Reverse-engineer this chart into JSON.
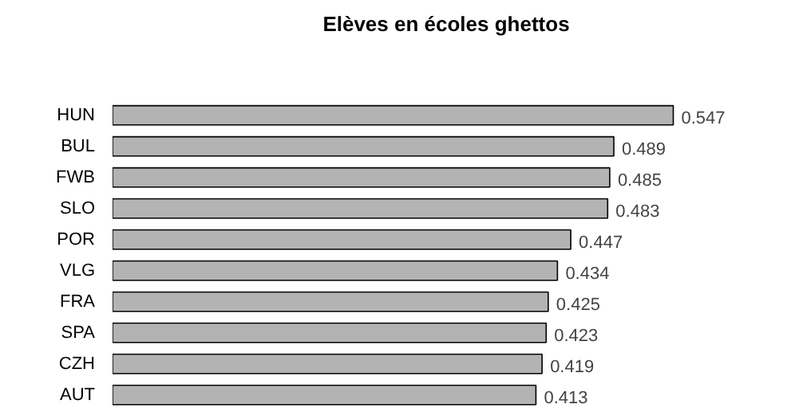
{
  "chart_data": {
    "type": "bar",
    "orientation": "horizontal",
    "title": "Elèves en écoles ghettos",
    "categories": [
      "HUN",
      "BUL",
      "FWB",
      "SLO",
      "POR",
      "VLG",
      "FRA",
      "SPA",
      "CZH",
      "AUT"
    ],
    "values": [
      0.547,
      0.489,
      0.485,
      0.483,
      0.447,
      0.434,
      0.425,
      0.423,
      0.419,
      0.413
    ],
    "color": "#b3b3b3",
    "data_labels": true,
    "grid": false
  }
}
